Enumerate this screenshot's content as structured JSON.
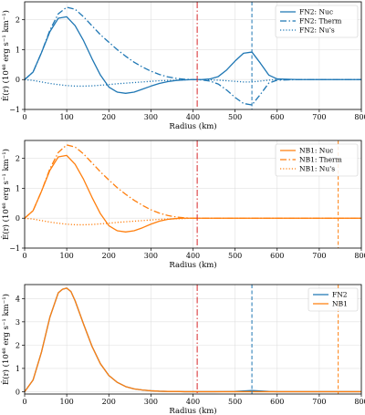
{
  "chart_data": [
    {
      "type": "line",
      "xlabel": "Radius (km)",
      "ylabel": "Ė(r) (10⁴⁸ erg s⁻¹ km⁻¹)",
      "xlim": [
        0,
        800
      ],
      "ylim": [
        -1,
        2.6
      ],
      "xticks": [
        0,
        100,
        200,
        300,
        400,
        500,
        600,
        700,
        800
      ],
      "yticks": [
        -1,
        0,
        1,
        2
      ],
      "grid": true,
      "legend_position": "top-right",
      "series": [
        {
          "name": "FN2: Nuc",
          "color": "#1f77b4",
          "style": "solid",
          "x": [
            0,
            20,
            40,
            60,
            80,
            100,
            120,
            140,
            160,
            180,
            200,
            220,
            240,
            260,
            280,
            300,
            320,
            340,
            360,
            380,
            400,
            420,
            440,
            460,
            480,
            500,
            520,
            540,
            560,
            580,
            600,
            650,
            700,
            750,
            800
          ],
          "y": [
            0,
            0.25,
            0.9,
            1.6,
            2.05,
            2.1,
            1.8,
            1.3,
            0.7,
            0.15,
            -0.25,
            -0.42,
            -0.46,
            -0.42,
            -0.32,
            -0.22,
            -0.13,
            -0.07,
            -0.03,
            -0.01,
            0,
            0,
            0.02,
            0.1,
            0.32,
            0.62,
            0.88,
            0.92,
            0.55,
            0.15,
            0.02,
            0,
            0,
            0,
            0
          ]
        },
        {
          "name": "FN2: Therm",
          "color": "#1f77b4",
          "style": "dashdot",
          "x": [
            0,
            20,
            40,
            60,
            80,
            100,
            120,
            140,
            160,
            180,
            200,
            220,
            240,
            260,
            280,
            300,
            320,
            340,
            360,
            380,
            400,
            420,
            440,
            460,
            480,
            500,
            520,
            540,
            560,
            580,
            600,
            650,
            700,
            750,
            800
          ],
          "y": [
            0,
            0.25,
            0.9,
            1.65,
            2.2,
            2.42,
            2.35,
            2.1,
            1.8,
            1.5,
            1.25,
            1.0,
            0.78,
            0.58,
            0.42,
            0.28,
            0.17,
            0.09,
            0.04,
            0.01,
            0,
            -0.01,
            -0.05,
            -0.15,
            -0.35,
            -0.6,
            -0.8,
            -0.85,
            -0.5,
            -0.12,
            -0.02,
            0,
            0,
            0,
            0
          ]
        },
        {
          "name": "FN2: Nu's",
          "color": "#1f77b4",
          "style": "dotted",
          "x": [
            0,
            20,
            40,
            60,
            80,
            100,
            120,
            140,
            160,
            180,
            200,
            220,
            240,
            260,
            280,
            300,
            320,
            340,
            360,
            380,
            400,
            420,
            440,
            460,
            480,
            500,
            520,
            540,
            560,
            580,
            600,
            650,
            700,
            750,
            800
          ],
          "y": [
            0,
            -0.03,
            -0.08,
            -0.13,
            -0.17,
            -0.2,
            -0.22,
            -0.22,
            -0.21,
            -0.19,
            -0.17,
            -0.14,
            -0.12,
            -0.1,
            -0.08,
            -0.06,
            -0.04,
            -0.03,
            -0.02,
            -0.01,
            0,
            0,
            -0.01,
            -0.02,
            -0.04,
            -0.06,
            -0.08,
            -0.08,
            -0.05,
            -0.02,
            0,
            0,
            0,
            0,
            0
          ]
        }
      ],
      "vlines": [
        {
          "x": 410,
          "color": "#d62728",
          "style": "dashdot"
        },
        {
          "x": 540,
          "color": "#1f77b4",
          "style": "dashed"
        }
      ]
    },
    {
      "type": "line",
      "xlabel": "Radius (km)",
      "ylabel": "Ė(r) (10⁴⁸ erg s⁻¹ km⁻¹)",
      "xlim": [
        0,
        800
      ],
      "ylim": [
        -1,
        2.6
      ],
      "xticks": [
        0,
        100,
        200,
        300,
        400,
        500,
        600,
        700,
        800
      ],
      "yticks": [
        -1,
        0,
        1,
        2
      ],
      "grid": true,
      "legend_position": "top-right",
      "series": [
        {
          "name": "NB1: Nuc",
          "color": "#ff7f0e",
          "style": "solid",
          "x": [
            0,
            20,
            40,
            60,
            80,
            100,
            120,
            140,
            160,
            180,
            200,
            220,
            240,
            260,
            280,
            300,
            320,
            340,
            360,
            380,
            400,
            420,
            450,
            500,
            600,
            700,
            800
          ],
          "y": [
            0,
            0.25,
            0.9,
            1.6,
            2.05,
            2.1,
            1.8,
            1.3,
            0.7,
            0.15,
            -0.25,
            -0.42,
            -0.46,
            -0.42,
            -0.32,
            -0.2,
            -0.1,
            -0.04,
            -0.01,
            0,
            0,
            0,
            0,
            0,
            0,
            0,
            0
          ]
        },
        {
          "name": "NB1: Therm",
          "color": "#ff7f0e",
          "style": "dashdot",
          "x": [
            0,
            20,
            40,
            60,
            80,
            100,
            120,
            140,
            160,
            180,
            200,
            220,
            240,
            260,
            280,
            300,
            320,
            340,
            360,
            380,
            400,
            420,
            450,
            500,
            600,
            700,
            800
          ],
          "y": [
            0,
            0.25,
            0.9,
            1.65,
            2.2,
            2.45,
            2.38,
            2.15,
            1.85,
            1.55,
            1.28,
            1.02,
            0.8,
            0.6,
            0.43,
            0.28,
            0.17,
            0.09,
            0.04,
            0.01,
            0,
            0,
            0,
            0,
            0,
            0,
            0
          ]
        },
        {
          "name": "NB1: Nu's",
          "color": "#ff7f0e",
          "style": "dotted",
          "x": [
            0,
            20,
            40,
            60,
            80,
            100,
            120,
            140,
            160,
            180,
            200,
            220,
            240,
            260,
            280,
            300,
            320,
            340,
            360,
            380,
            400,
            420,
            450,
            500,
            600,
            700,
            800
          ],
          "y": [
            0,
            -0.03,
            -0.08,
            -0.13,
            -0.17,
            -0.2,
            -0.22,
            -0.22,
            -0.21,
            -0.19,
            -0.17,
            -0.14,
            -0.12,
            -0.1,
            -0.08,
            -0.06,
            -0.04,
            -0.03,
            -0.02,
            -0.01,
            0,
            0,
            0,
            0,
            0,
            0,
            0
          ]
        }
      ],
      "vlines": [
        {
          "x": 410,
          "color": "#d62728",
          "style": "dashdot"
        },
        {
          "x": 745,
          "color": "#ff7f0e",
          "style": "dashed"
        }
      ]
    },
    {
      "type": "line",
      "xlabel": "Radius (km)",
      "ylabel": "Ė(r) (10⁴⁸ erg s⁻¹ km⁻¹)",
      "xlim": [
        0,
        800
      ],
      "ylim": [
        -0.1,
        4.6
      ],
      "xticks": [
        0,
        100,
        200,
        300,
        400,
        500,
        600,
        700,
        800
      ],
      "yticks": [
        0,
        1,
        2,
        3,
        4
      ],
      "grid": true,
      "legend_position": "top-right",
      "series": [
        {
          "name": "FN2",
          "color": "#1f77b4",
          "style": "solid",
          "x": [
            0,
            20,
            40,
            60,
            80,
            90,
            100,
            110,
            120,
            140,
            160,
            180,
            200,
            220,
            240,
            260,
            280,
            300,
            320,
            340,
            360,
            380,
            400,
            450,
            500,
            520,
            540,
            560,
            580,
            600,
            700,
            800
          ],
          "y": [
            0,
            0.5,
            1.7,
            3.2,
            4.25,
            4.4,
            4.45,
            4.3,
            3.9,
            2.9,
            1.95,
            1.2,
            0.7,
            0.4,
            0.22,
            0.12,
            0.07,
            0.04,
            0.02,
            0.01,
            0.01,
            0,
            0,
            0,
            0.01,
            0.03,
            0.05,
            0.03,
            0.01,
            0,
            0,
            0
          ]
        },
        {
          "name": "NB1",
          "color": "#ff7f0e",
          "style": "solid",
          "x": [
            0,
            20,
            40,
            60,
            80,
            90,
            100,
            110,
            120,
            140,
            160,
            180,
            200,
            220,
            240,
            260,
            280,
            300,
            320,
            340,
            360,
            380,
            400,
            450,
            500,
            600,
            700,
            800
          ],
          "y": [
            0,
            0.5,
            1.7,
            3.2,
            4.25,
            4.4,
            4.45,
            4.3,
            3.9,
            2.9,
            1.95,
            1.2,
            0.7,
            0.4,
            0.22,
            0.12,
            0.07,
            0.04,
            0.02,
            0.01,
            0.01,
            0,
            0,
            0,
            0,
            0,
            0,
            0
          ]
        }
      ],
      "vlines": [
        {
          "x": 410,
          "color": "#d62728",
          "style": "dashdot"
        },
        {
          "x": 540,
          "color": "#1f77b4",
          "style": "dashed"
        },
        {
          "x": 745,
          "color": "#ff7f0e",
          "style": "dashed"
        }
      ]
    }
  ]
}
